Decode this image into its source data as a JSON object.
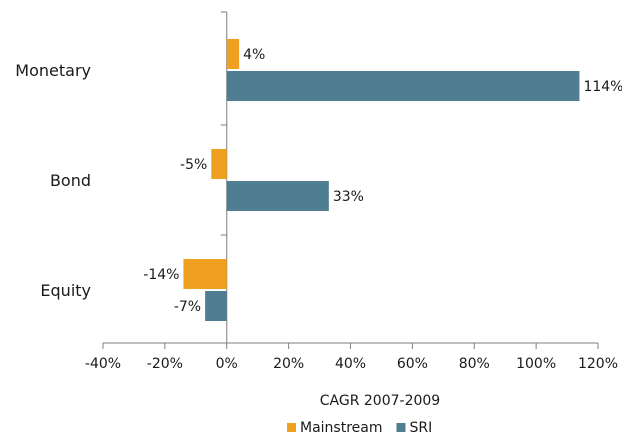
{
  "chart_data": {
    "type": "bar",
    "orientation": "horizontal",
    "categories": [
      "Monetary",
      "Bond",
      "Equity"
    ],
    "series": [
      {
        "name": "Mainstream",
        "color": "#F0A020",
        "values": [
          4,
          -5,
          -14
        ],
        "labels": [
          "4%",
          "-5%",
          "-14%"
        ]
      },
      {
        "name": "SRI",
        "color": "#4F7E93",
        "values": [
          114,
          33,
          -7
        ],
        "labels": [
          "114%",
          "33%",
          "-7%"
        ]
      }
    ],
    "xlabel": "CAGR 2007-2009",
    "xlim": [
      -40,
      120
    ],
    "xticks": [
      -40,
      -20,
      0,
      20,
      40,
      60,
      80,
      100,
      120
    ],
    "xtick_labels": [
      "-40%",
      "-20%",
      "0%",
      "20%",
      "40%",
      "60%",
      "80%",
      "100%",
      "120%"
    ],
    "legend_position": "bottom",
    "grid": false
  }
}
